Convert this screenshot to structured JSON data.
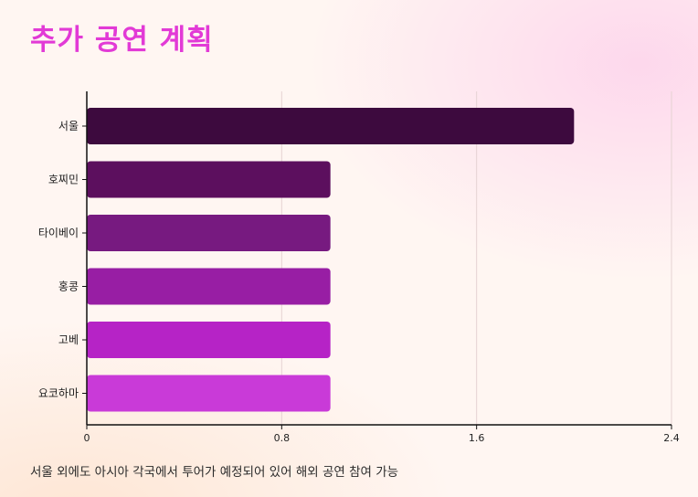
{
  "chart_data": {
    "type": "bar",
    "orientation": "horizontal",
    "title": "추가 공연 계획",
    "categories": [
      "서울",
      "호찌민",
      "타이베이",
      "홍콩",
      "고베",
      "요코하마"
    ],
    "values": [
      2,
      1,
      1,
      1,
      1,
      1
    ],
    "xlim": [
      0,
      2.4
    ],
    "x_ticks": [
      "0",
      "0.8",
      "1.6",
      "2.4"
    ],
    "grid": true,
    "bar_colors": [
      "#3d0a3e",
      "#5c0f5e",
      "#771a80",
      "#981ea4",
      "#b623c6",
      "#c93ad8"
    ]
  },
  "caption": "서울 외에도 아시아 각국에서 투어가 예정되어 있어 해외 공연 참여 가능"
}
